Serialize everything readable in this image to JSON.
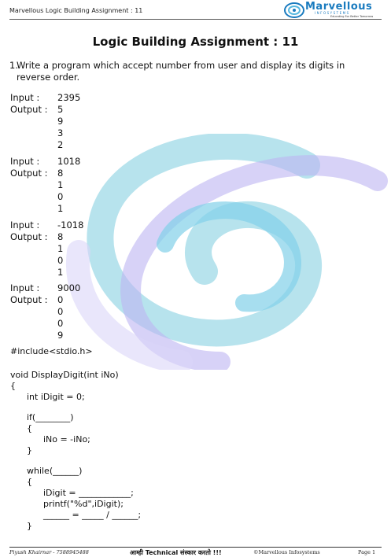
{
  "header": {
    "left_text": "Marvellous Logic Building Assignment : 11",
    "logo_name": "Marvellous",
    "logo_sub": "INFOSYSTEMS",
    "logo_tagline": "Educating For Better Tomorrow"
  },
  "title": "Logic Building Assignment :  11",
  "question": {
    "number": "1.",
    "text": "Write a program which accept number from user and display its digits in reverse order."
  },
  "labels": {
    "input": "Input :",
    "output": "Output :"
  },
  "examples": [
    {
      "input": "2395",
      "output": [
        "5",
        "9",
        "3",
        "2"
      ]
    },
    {
      "input": "1018",
      "output": [
        "8",
        "1",
        "0",
        "1"
      ]
    },
    {
      "input": "-1018",
      "output": [
        "8",
        "1",
        "0",
        "1"
      ]
    },
    {
      "input": "9000",
      "output": [
        "0",
        "0",
        "0",
        "9"
      ]
    }
  ],
  "code": [
    "#include<stdio.h>",
    "",
    "void DisplayDigit(int iNo)",
    "{",
    "      int iDigit = 0;",
    "",
    "      if(________)",
    "      {",
    "            iNo = -iNo;",
    "      }",
    "",
    "      while(______)",
    "      {",
    "            iDigit = ____________;",
    "            printf(\"%d\",iDigit);",
    "            ______ = _____ / ______;",
    "      }"
  ],
  "footer": {
    "left": "Piyush Khairnar - 7588945488",
    "middle": "आम्ही Technical संस्कार करतो !!!",
    "right": "©Marvellous Infosystems",
    "page": "Page 1"
  }
}
